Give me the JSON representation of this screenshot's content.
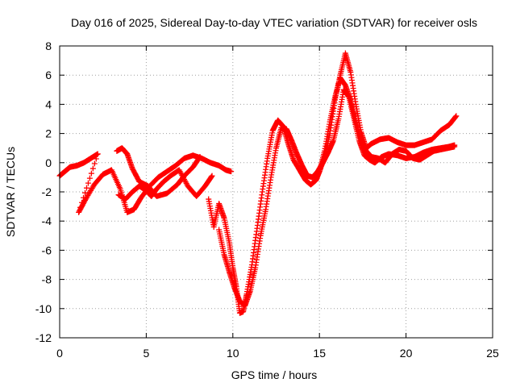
{
  "chart_data": {
    "type": "scatter",
    "title": "Day 016 of 2025, Sidereal Day-to-day VTEC variation (SDTVAR) for receiver osls",
    "xlabel": "GPS time / hours",
    "ylabel": "SDTVAR / TECUs",
    "xlim": [
      0,
      25
    ],
    "ylim": [
      -12,
      8
    ],
    "x_ticks": [
      "0",
      "5",
      "10",
      "15",
      "20",
      "25"
    ],
    "y_ticks": [
      "8",
      "6",
      "4",
      "2",
      "0",
      "-2",
      "-4",
      "-6",
      "-8",
      "-10",
      "-12"
    ],
    "x_tick_values": [
      0,
      5,
      10,
      15,
      20,
      25
    ],
    "y_tick_values": [
      8,
      6,
      4,
      2,
      0,
      -2,
      -4,
      -6,
      -8,
      -10,
      -12
    ],
    "grid": true,
    "marker": "+",
    "color": "#ff0000",
    "series": [
      {
        "x": [
          0.0,
          0.3,
          0.6,
          1.0,
          1.4,
          1.8,
          2.2,
          1.1,
          1.5,
          2.0,
          2.5,
          3.0,
          3.5,
          3.9,
          4.3,
          4.7,
          5.2,
          5.7,
          6.2,
          6.7,
          7.2,
          7.7,
          8.2,
          8.7,
          9.2,
          9.6,
          9.9
        ],
        "y": [
          -0.9,
          -0.6,
          -0.3,
          -0.2,
          0.0,
          0.3,
          0.6,
          -3.4,
          -2.5,
          -1.5,
          -0.8,
          -0.5,
          -1.8,
          -3.4,
          -3.2,
          -2.4,
          -1.6,
          -1.0,
          -0.6,
          -0.2,
          0.3,
          0.5,
          0.3,
          0.0,
          -0.2,
          -0.5,
          -0.6
        ]
      },
      {
        "x": [
          3.4,
          3.8,
          4.2,
          4.6,
          5.0,
          5.3,
          5.6,
          6.0,
          6.4,
          6.9,
          7.4,
          7.9,
          8.4,
          8.8,
          3.3,
          3.6,
          3.9,
          4.2,
          4.6,
          5.1,
          5.6,
          6.2,
          6.8,
          7.2,
          7.7,
          8.1
        ],
        "y": [
          -2.2,
          -2.5,
          -2.0,
          -1.6,
          -1.9,
          -2.3,
          -1.8,
          -1.3,
          -0.9,
          -0.5,
          -1.6,
          -2.3,
          -1.6,
          -0.9,
          0.8,
          1.0,
          0.6,
          -0.4,
          -1.3,
          -1.6,
          -2.3,
          -2.1,
          -1.5,
          -0.9,
          -0.3,
          0.4
        ]
      },
      {
        "x": [
          8.6,
          8.9,
          9.2,
          9.5,
          9.8,
          10.0,
          10.2,
          10.4,
          10.6,
          10.8,
          11.1,
          11.4,
          11.7,
          12.0,
          12.3,
          12.6,
          12.9,
          13.2,
          13.5,
          13.9,
          14.2,
          14.5,
          14.8,
          15.0,
          15.3,
          15.6,
          15.9,
          16.2,
          16.5,
          16.8,
          17.1,
          17.4,
          17.7,
          18.0,
          18.5,
          19.0,
          19.5,
          20.0,
          20.5,
          21.0,
          21.5,
          22.0,
          22.5,
          22.9
        ],
        "y": [
          -2.5,
          -4.4,
          -2.8,
          -3.8,
          -5.5,
          -7.2,
          -8.5,
          -10.3,
          -10.2,
          -9.0,
          -7.0,
          -4.5,
          -2.0,
          0.3,
          2.2,
          2.9,
          2.5,
          1.3,
          0.2,
          -0.6,
          -1.2,
          -1.5,
          -1.2,
          -0.6,
          0.4,
          2.0,
          4.3,
          6.0,
          7.5,
          6.2,
          4.0,
          2.1,
          1.0,
          1.3,
          1.6,
          1.7,
          1.4,
          1.2,
          1.2,
          1.4,
          1.6,
          2.2,
          2.6,
          3.2
        ]
      },
      {
        "x": [
          9.2,
          9.5,
          9.8,
          10.1,
          10.4,
          10.7,
          11.0,
          11.3,
          11.6,
          11.9,
          12.2,
          12.5,
          12.8,
          13.1,
          13.4,
          13.7,
          14.0,
          14.3,
          14.6,
          14.9,
          15.2,
          15.5,
          15.8,
          16.1,
          16.4,
          16.7,
          17.0,
          17.3,
          17.6,
          17.9,
          18.2,
          18.6,
          19.0,
          19.5,
          20.0,
          20.5,
          21.0,
          21.5,
          22.0,
          22.5,
          22.8
        ],
        "y": [
          -4.6,
          -6.3,
          -7.5,
          -8.6,
          -9.5,
          -9.8,
          -8.8,
          -7.2,
          -5.0,
          -3.2,
          -1.0,
          1.0,
          2.4,
          2.3,
          1.5,
          0.6,
          -0.2,
          -0.9,
          -1.0,
          -0.6,
          0.0,
          0.7,
          1.5,
          3.0,
          5.0,
          4.5,
          3.0,
          1.5,
          0.5,
          0.2,
          0.0,
          0.4,
          0.6,
          0.5,
          0.3,
          0.4,
          0.7,
          0.9,
          1.0,
          1.1,
          1.2
        ]
      },
      {
        "x": [
          15.0,
          15.3,
          15.6,
          15.9,
          16.2,
          16.5,
          16.8,
          17.1,
          17.4,
          17.7,
          18.0,
          18.4,
          18.8,
          19.2,
          19.6,
          20.0,
          20.4,
          20.8,
          21.2,
          21.6,
          22.0,
          22.4,
          22.8
        ],
        "y": [
          -0.6,
          0.8,
          2.8,
          4.5,
          5.8,
          5.3,
          4.3,
          2.8,
          1.6,
          0.8,
          0.4,
          0.3,
          0.0,
          0.6,
          0.9,
          0.8,
          0.3,
          0.2,
          0.5,
          0.8,
          0.9,
          1.0,
          1.1
        ]
      }
    ]
  }
}
